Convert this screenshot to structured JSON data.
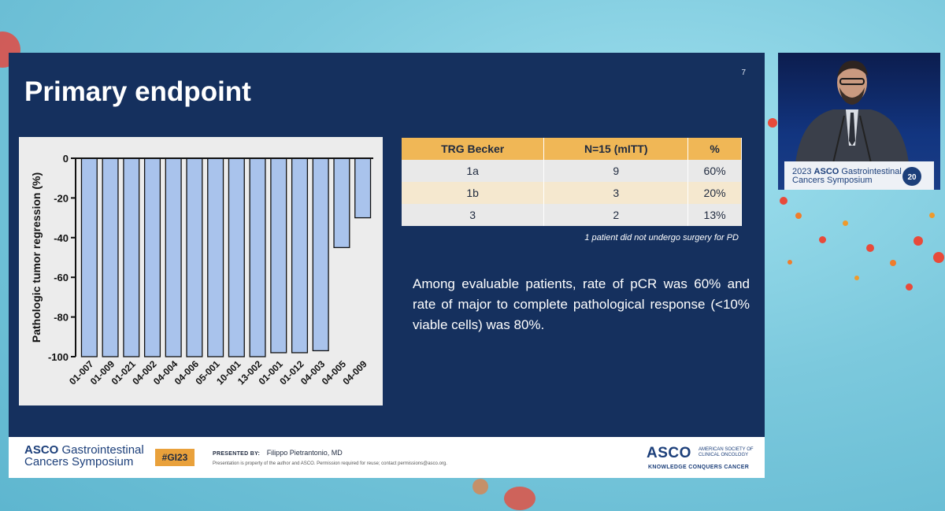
{
  "slide": {
    "title": "Primary endpoint",
    "number": "7"
  },
  "chart_data": {
    "type": "bar",
    "ylabel": "Pathologic tumor regression (%)",
    "xlabel": "",
    "ylim": [
      -100,
      0
    ],
    "yticks": [
      0,
      -20,
      -40,
      -60,
      -80,
      -100
    ],
    "categories": [
      "01-007",
      "01-009",
      "01-021",
      "04-002",
      "04-004",
      "04-006",
      "05-001",
      "10-001",
      "13-002",
      "01-001",
      "01-012",
      "04-003",
      "04-005",
      "04-009"
    ],
    "values": [
      -100,
      -100,
      -100,
      -100,
      -100,
      -100,
      -100,
      -100,
      -100,
      -98,
      -98,
      -97,
      -45,
      -30
    ],
    "bar_color": "#a9c3ec",
    "grid": false
  },
  "table": {
    "headers": [
      "TRG Becker",
      "N=15 (mITT)",
      "%"
    ],
    "rows": [
      [
        "1a",
        "9",
        "60%"
      ],
      [
        "1b",
        "3",
        "20%"
      ],
      [
        "3",
        "2",
        "13%"
      ]
    ],
    "note": "1 patient did not undergo surgery for PD"
  },
  "summary": "Among evaluable patients, rate of pCR was 60% and rate of major to complete pathological response (<10% viable cells) was 80%.",
  "footer": {
    "logo_brand": "ASCO",
    "logo_line1": "Gastrointestinal",
    "logo_line2": "Cancers Symposium",
    "hashtag": "#GI23",
    "presented_by_label": "PRESENTED BY:",
    "presenter": "Filippo Pietrantonio, MD",
    "disclaimer": "Presentation is property of the author and ASCO. Permission required for reuse; contact permissions@asco.org.",
    "asco_word": "ASCO",
    "asco_sub": "AMERICAN SOCIETY OF CLINICAL ONCOLOGY",
    "asco_tagline": "KNOWLEDGE CONQUERS CANCER"
  },
  "speaker": {
    "podium_year": "2023",
    "podium_brand": "ASCO",
    "podium_line1": "Gastrointestinal",
    "podium_line2": "Cancers Symposium",
    "badge": "20"
  },
  "colors": {
    "slide_bg": "#15305e",
    "accent": "#f0b756",
    "bar": "#a9c3ec"
  }
}
